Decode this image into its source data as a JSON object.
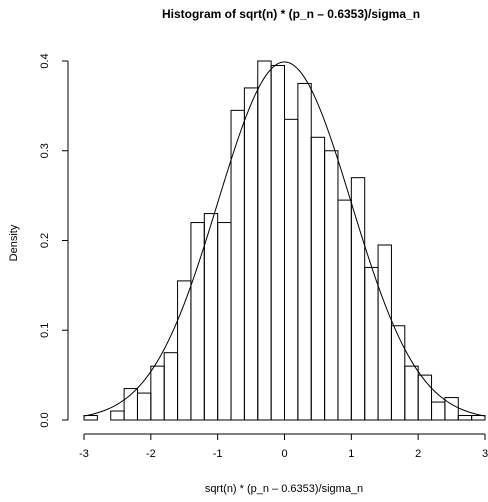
{
  "chart_data": {
    "type": "bar",
    "title": "Histogram of sqrt(n) * (p_n – 0.6353)/sigma_n",
    "xlabel": "sqrt(n) * (p_n – 0.6353)/sigma_n",
    "ylabel": "Density",
    "xlim": [
      -3,
      3
    ],
    "ylim": [
      0,
      0.4
    ],
    "x_ticks": [
      "-3",
      "-2",
      "-1",
      "0",
      "1",
      "2",
      "3"
    ],
    "y_ticks": [
      "0.0",
      "0.1",
      "0.2",
      "0.3",
      "0.4"
    ],
    "bin_width": 0.2,
    "bins_start": [
      -3.0,
      -2.8,
      -2.6,
      -2.4,
      -2.2,
      -2.0,
      -1.8,
      -1.6,
      -1.4,
      -1.2,
      -1.0,
      -0.8,
      -0.6,
      -0.4,
      -0.2,
      0.0,
      0.2,
      0.4,
      0.6,
      0.8,
      1.0,
      1.2,
      1.4,
      1.6,
      1.8,
      2.0,
      2.2,
      2.4,
      2.6,
      2.8
    ],
    "density": [
      0.005,
      0.0,
      0.01,
      0.035,
      0.03,
      0.06,
      0.075,
      0.155,
      0.22,
      0.23,
      0.22,
      0.345,
      0.37,
      0.4,
      0.395,
      0.335,
      0.375,
      0.315,
      0.3,
      0.245,
      0.27,
      0.17,
      0.195,
      0.105,
      0.06,
      0.05,
      0.02,
      0.025,
      0.005,
      0.005
    ],
    "overlay": {
      "type": "line",
      "function": "standard normal density",
      "mean": 0,
      "sd": 1
    },
    "grid": false,
    "legend": "none"
  }
}
